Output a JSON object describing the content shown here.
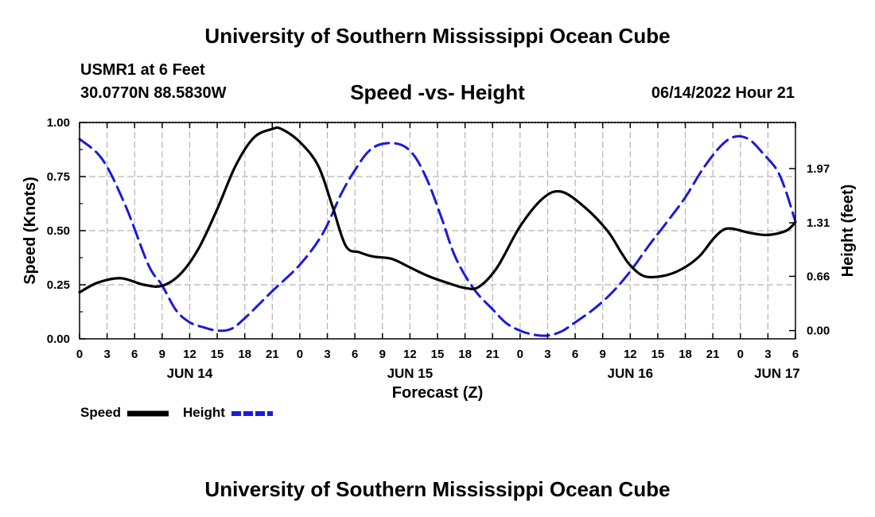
{
  "header": {
    "top_title": "University of Southern Mississippi Ocean Cube",
    "bottom_title": "University of Southern Mississippi Ocean Cube",
    "station": "USMR1 at 6 Feet",
    "coords": "30.0770N  88.5830W",
    "datetime": "06/14/2022 Hour 21"
  },
  "colors": {
    "speed": "#000000",
    "height": "#1a1adc",
    "grid": "#b4b4b4"
  },
  "chart_data": {
    "type": "line",
    "title": "Speed -vs- Height",
    "xlabel": "Forecast (Z)",
    "ylabel": "Speed (Knots)",
    "y2label": "Height (feet)",
    "x_range": [
      0,
      78
    ],
    "ylim": [
      0,
      1
    ],
    "y2lim": [
      -0.1,
      2.53
    ],
    "yticks": [
      {
        "value": 0,
        "label": "0.00"
      },
      {
        "value": 0.25,
        "label": "0.25"
      },
      {
        "value": 0.5,
        "label": "0.50"
      },
      {
        "value": 0.75,
        "label": "0.75"
      },
      {
        "value": 1,
        "label": "1.00"
      }
    ],
    "y2ticks": [
      {
        "value": 0.0,
        "label": "0.00"
      },
      {
        "value": 0.66,
        "label": "0.66"
      },
      {
        "value": 1.31,
        "label": "1.31"
      },
      {
        "value": 1.97,
        "label": "1.97"
      }
    ],
    "xticks": [
      {
        "value": 0,
        "label": "0"
      },
      {
        "value": 3,
        "label": "3"
      },
      {
        "value": 6,
        "label": "6"
      },
      {
        "value": 9,
        "label": "9"
      },
      {
        "value": 12,
        "label": "12"
      },
      {
        "value": 15,
        "label": "15"
      },
      {
        "value": 18,
        "label": "18"
      },
      {
        "value": 21,
        "label": "21"
      },
      {
        "value": 24,
        "label": "0"
      },
      {
        "value": 27,
        "label": "3"
      },
      {
        "value": 30,
        "label": "6"
      },
      {
        "value": 33,
        "label": "9"
      },
      {
        "value": 36,
        "label": "12"
      },
      {
        "value": 39,
        "label": "15"
      },
      {
        "value": 42,
        "label": "18"
      },
      {
        "value": 45,
        "label": "21"
      },
      {
        "value": 48,
        "label": "0"
      },
      {
        "value": 51,
        "label": "3"
      },
      {
        "value": 54,
        "label": "6"
      },
      {
        "value": 57,
        "label": "9"
      },
      {
        "value": 60,
        "label": "12"
      },
      {
        "value": 63,
        "label": "15"
      },
      {
        "value": 66,
        "label": "18"
      },
      {
        "value": 69,
        "label": "21"
      },
      {
        "value": 72,
        "label": "0"
      },
      {
        "value": 75,
        "label": "3"
      },
      {
        "value": 78,
        "label": "6"
      }
    ],
    "date_labels": [
      {
        "value": 12,
        "label": "JUN 14"
      },
      {
        "value": 36,
        "label": "JUN 15"
      },
      {
        "value": 60,
        "label": "JUN 16"
      },
      {
        "value": 76,
        "label": "JUN 17"
      }
    ],
    "series": [
      {
        "name": "Speed",
        "axis": "left",
        "style": "solid",
        "x": [
          0,
          2,
          4.5,
          7,
          9,
          11,
          13,
          15,
          17,
          19,
          21,
          22,
          24,
          26,
          27.5,
          29,
          30.5,
          32,
          34,
          36,
          38,
          40,
          42,
          43.5,
          45.5,
          48,
          50.5,
          52.5,
          55,
          57.5,
          59,
          60,
          61.5,
          63.5,
          65.5,
          67.5,
          69,
          70,
          71,
          73,
          75,
          77,
          78
        ],
        "values": [
          0.215,
          0.26,
          0.28,
          0.25,
          0.245,
          0.3,
          0.42,
          0.6,
          0.8,
          0.93,
          0.97,
          0.97,
          0.91,
          0.8,
          0.62,
          0.43,
          0.4,
          0.38,
          0.37,
          0.33,
          0.29,
          0.26,
          0.235,
          0.24,
          0.33,
          0.52,
          0.65,
          0.68,
          0.61,
          0.5,
          0.4,
          0.34,
          0.29,
          0.29,
          0.32,
          0.38,
          0.46,
          0.5,
          0.51,
          0.49,
          0.48,
          0.5,
          0.54
        ]
      },
      {
        "name": "Height",
        "axis": "right",
        "style": "dashed",
        "x": [
          0,
          2.5,
          5,
          7.5,
          9,
          10.5,
          12,
          13.5,
          15,
          16.5,
          18,
          21,
          24,
          26.5,
          28.5,
          30,
          31.5,
          33,
          35,
          36.5,
          38,
          39.5,
          41,
          43,
          45,
          46.5,
          48,
          49.5,
          51,
          52.5,
          54,
          56,
          58,
          60,
          62,
          64,
          66,
          68,
          70,
          71.5,
          73,
          74.5,
          76,
          77,
          78
        ],
        "values": [
          2.33,
          2.08,
          1.52,
          0.8,
          0.55,
          0.25,
          0.1,
          0.04,
          0.0,
          0.02,
          0.15,
          0.48,
          0.8,
          1.18,
          1.66,
          1.95,
          2.18,
          2.27,
          2.26,
          2.12,
          1.8,
          1.35,
          0.88,
          0.5,
          0.26,
          0.09,
          0.0,
          -0.05,
          -0.06,
          -0.01,
          0.1,
          0.26,
          0.46,
          0.72,
          1.03,
          1.32,
          1.62,
          1.98,
          2.26,
          2.36,
          2.32,
          2.15,
          1.95,
          1.68,
          1.32
        ]
      }
    ],
    "legend": [
      {
        "name": "Speed",
        "style": "solid"
      },
      {
        "name": "Height",
        "style": "dashed"
      }
    ]
  }
}
